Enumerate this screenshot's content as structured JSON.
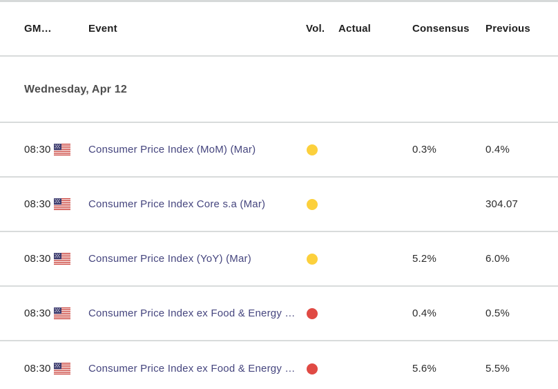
{
  "table": {
    "columns": [
      {
        "key": "gmt",
        "label": "GM…"
      },
      {
        "key": "event",
        "label": "Event"
      },
      {
        "key": "vol",
        "label": "Vol."
      },
      {
        "key": "actual",
        "label": "Actual"
      },
      {
        "key": "consensus",
        "label": "Consensus"
      },
      {
        "key": "previous",
        "label": "Previous"
      }
    ],
    "section": {
      "date_label": "Wednesday, Apr 12"
    },
    "rows": [
      {
        "time": "08:30",
        "country": "US",
        "event": "Consumer Price Index (MoM) (Mar)",
        "volatility": "medium",
        "actual": "",
        "consensus": "0.3%",
        "previous": "0.4%"
      },
      {
        "time": "08:30",
        "country": "US",
        "event": "Consumer Price Index Core s.a (Mar)",
        "volatility": "medium",
        "actual": "",
        "consensus": "",
        "previous": "304.07"
      },
      {
        "time": "08:30",
        "country": "US",
        "event": "Consumer Price Index (YoY) (Mar)",
        "volatility": "medium",
        "actual": "",
        "consensus": "5.2%",
        "previous": "6.0%"
      },
      {
        "time": "08:30",
        "country": "US",
        "event": "Consumer Price Index ex Food & Energy …",
        "volatility": "high",
        "actual": "",
        "consensus": "0.4%",
        "previous": "0.5%"
      },
      {
        "time": "08:30",
        "country": "US",
        "event": "Consumer Price Index ex Food & Energy …",
        "volatility": "high",
        "actual": "",
        "consensus": "5.6%",
        "previous": "5.5%"
      }
    ]
  },
  "colors": {
    "volatility_medium": "#fcd03c",
    "volatility_high": "#e04a44",
    "event_text": "#45457e",
    "divider": "#d8dbdb",
    "flag_blue": "#3c3b6e",
    "flag_red": "#c7372f"
  }
}
